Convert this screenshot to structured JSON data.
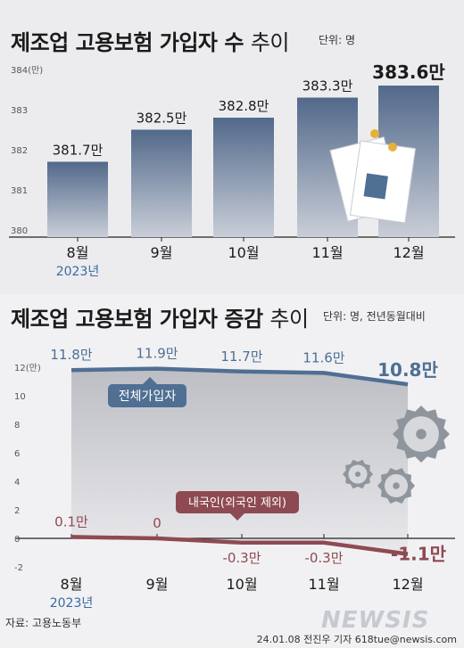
{
  "chart_data": [
    {
      "type": "bar",
      "title": "제조업 고용보험 가입자 수",
      "title_suffix": "추이",
      "unit_label": "단위: 명",
      "y_unit_tick": "384(만)",
      "ylim": [
        380,
        384
      ],
      "yticks": [
        380,
        381,
        382,
        383,
        384
      ],
      "categories": [
        "8월",
        "9월",
        "10월",
        "11월",
        "12월"
      ],
      "year_label": "2023년",
      "values": [
        381.7,
        382.5,
        382.8,
        383.3,
        383.6
      ],
      "value_labels": [
        "381.7만",
        "382.5만",
        "382.8만",
        "383.3만",
        "383.6만"
      ],
      "grid": false
    },
    {
      "type": "line",
      "title": "제조업 고용보험 가입자 증감",
      "title_suffix": "추이",
      "unit_label": "단위: 명, 전년동월대비",
      "y_unit_tick": "12(만)",
      "ylim": [
        -2,
        12
      ],
      "yticks": [
        12,
        10,
        8,
        6,
        4,
        2,
        0,
        -2
      ],
      "categories": [
        "8월",
        "9월",
        "10월",
        "11월",
        "12월"
      ],
      "year_label": "2023년",
      "series": [
        {
          "name": "전체가입자",
          "values": [
            11.8,
            11.9,
            11.7,
            11.6,
            10.8
          ],
          "value_labels": [
            "11.8만",
            "11.9만",
            "11.7만",
            "11.6만",
            "10.8만"
          ],
          "color": "#4f6f93"
        },
        {
          "name": "내국인(외국인 제외)",
          "values": [
            0.1,
            0,
            -0.3,
            -0.3,
            -1.1
          ],
          "value_labels": [
            "0.1만",
            "0",
            "-0.3만",
            "-0.3만",
            "-1.1만"
          ],
          "color": "#8e4a52"
        }
      ],
      "grid": false
    }
  ],
  "footer": {
    "source": "자료: 고용노동부",
    "credit": "24.01.08 전진우 기자 618tue@newsis.com",
    "logo": "NEWSIS"
  },
  "decorations": [
    "document-icon",
    "gear-icon"
  ]
}
